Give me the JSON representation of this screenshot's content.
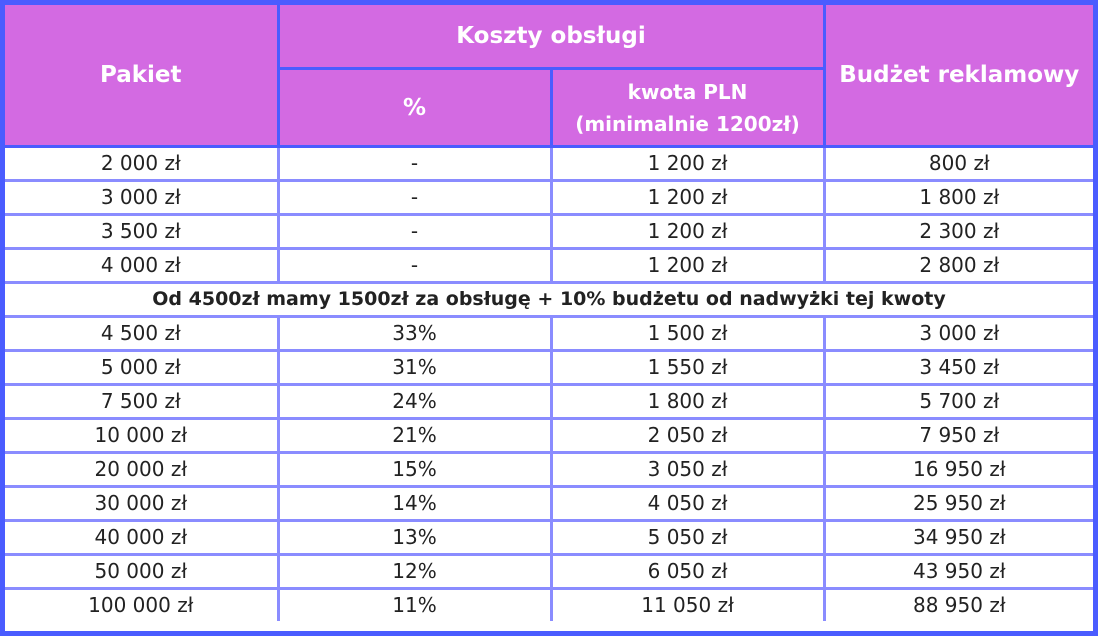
{
  "header": {
    "pakiet": "Pakiet",
    "koszty": "Koszty obsługi",
    "percent": "%",
    "kwota_line1": "kwota PLN",
    "kwota_line2": "(minimalnie 1200zł)",
    "budzet": "Budżet reklamowy"
  },
  "colors": {
    "header_bg": "#d36ae2",
    "border_outer": "#4a5cff",
    "border_inner": "#8a8cff"
  },
  "rows_before": [
    [
      "2 000 zł",
      "-",
      "1 200 zł",
      "800 zł"
    ],
    [
      "3 000 zł",
      "-",
      "1 200 zł",
      "1 800 zł"
    ],
    [
      "3 500 zł",
      "-",
      "1 200 zł",
      "2 300 zł"
    ],
    [
      "4 000 zł",
      "-",
      "1 200 zł",
      "2 800 zł"
    ]
  ],
  "note": "Od 4500zł mamy 1500zł za obsługę + 10% budżetu od nadwyżki tej kwoty",
  "rows_after": [
    [
      "4 500 zł",
      "33%",
      "1 500 zł",
      "3 000 zł"
    ],
    [
      "5 000 zł",
      "31%",
      "1 550 zł",
      "3 450 zł"
    ],
    [
      "7 500 zł",
      "24%",
      "1 800 zł",
      "5 700 zł"
    ],
    [
      "10 000 zł",
      "21%",
      "2 050 zł",
      "7 950 zł"
    ],
    [
      "20 000 zł",
      "15%",
      "3 050 zł",
      "16 950 zł"
    ],
    [
      "30 000 zł",
      "14%",
      "4 050 zł",
      "25 950 zł"
    ],
    [
      "40 000 zł",
      "13%",
      "5 050 zł",
      "34 950 zł"
    ],
    [
      "50 000 zł",
      "12%",
      "6 050 zł",
      "43 950 zł"
    ],
    [
      "100 000 zł",
      "11%",
      "11 050 zł",
      "88 950 zł"
    ]
  ]
}
